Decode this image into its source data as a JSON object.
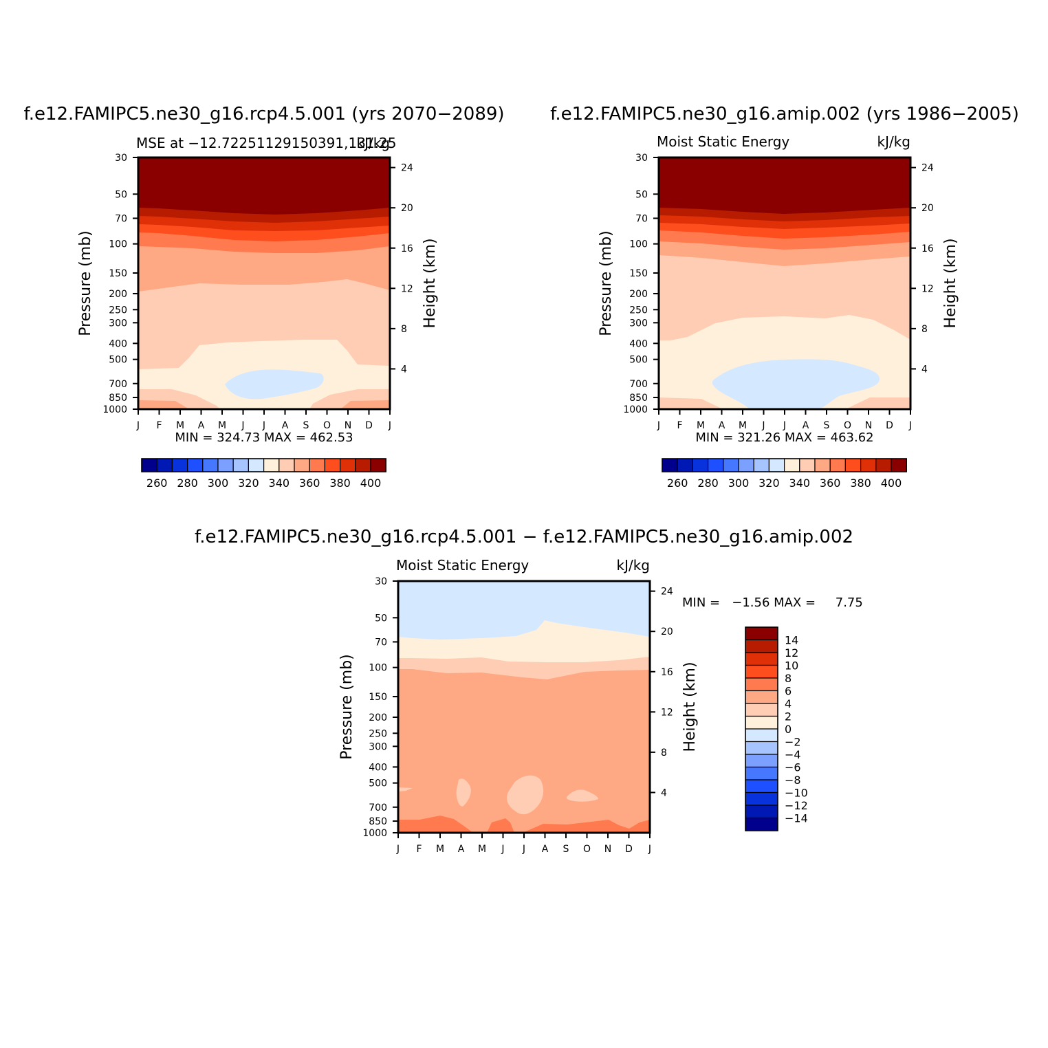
{
  "colors": {
    "abs_scale": [
      "#00008c",
      "#0018b4",
      "#0832dc",
      "#1e50ff",
      "#4678ff",
      "#7ca0ff",
      "#a6c4ff",
      "#d4e8ff",
      "#fff0dc",
      "#ffcdb4",
      "#ffa884",
      "#ff7a4e",
      "#ff4e1e",
      "#e03008",
      "#b81c00",
      "#8a0000"
    ],
    "diff_scale": [
      "#00008c",
      "#0018b4",
      "#0832dc",
      "#1e50ff",
      "#4678ff",
      "#7ca0ff",
      "#a6c4ff",
      "#d4e8ff",
      "#fff0dc",
      "#ffcdb4",
      "#ffa884",
      "#ff7a4e",
      "#ff4e1e",
      "#e03008",
      "#b81c00",
      "#8a0000"
    ]
  },
  "panels": [
    {
      "id": "rcp",
      "title": "f.e12.FAMIPC5.ne30_g16.rcp4.5.001 (yrs 2070−2089)",
      "left_string": "MSE at −12.72251129150391,131.25",
      "right_string": "kJ/kg",
      "y_label": "Pressure (mb)",
      "y2_label": "Height (km)",
      "stats": "MIN = 324.73 MAX = 462.53"
    },
    {
      "id": "amip",
      "title": "f.e12.FAMIPC5.ne30_g16.amip.002 (yrs 1986−2005)",
      "left_string": "Moist Static Energy",
      "right_string": "kJ/kg",
      "y_label": "Pressure (mb)",
      "y2_label": "Height (km)",
      "stats": "MIN = 321.26 MAX = 463.62"
    },
    {
      "id": "diff",
      "title": "f.e12.FAMIPC5.ne30_g16.rcp4.5.001 − f.e12.FAMIPC5.ne30_g16.amip.002",
      "left_string": "Moist Static Energy",
      "right_string": "kJ/kg",
      "y_label": "Pressure (mb)",
      "y2_label": "Height (km)",
      "stats": "MIN =   −1.56 MAX =     7.75"
    }
  ],
  "axes": {
    "months": [
      "J",
      "F",
      "M",
      "A",
      "M",
      "J",
      "J",
      "A",
      "S",
      "O",
      "N",
      "D",
      "J"
    ],
    "pressure_ticks": [
      "30",
      "50",
      "70",
      "100",
      "150",
      "200",
      "250",
      "300",
      "400",
      "500",
      "700",
      "850",
      "1000"
    ],
    "height_ticks": [
      "24",
      "20",
      "16",
      "12",
      "8",
      "4"
    ]
  },
  "colorbars": {
    "abs_labels": [
      "260",
      "280",
      "300",
      "320",
      "340",
      "360",
      "380",
      "400"
    ],
    "diff_labels": [
      "14",
      "12",
      "10",
      "8",
      "6",
      "4",
      "2",
      "0",
      "−2",
      "−4",
      "−6",
      "−8",
      "−10",
      "−12",
      "−14"
    ]
  },
  "chart_data": [
    {
      "type": "heatmap",
      "title": "f.e12.FAMIPC5.ne30_g16.rcp4.5.001 (yrs 2070−2089)",
      "subtitle": "MSE at −12.72251129150391,131.25",
      "units": "kJ/kg",
      "xlabel": "",
      "ylabel": "Pressure (mb)",
      "y2label": "Height (km)",
      "x_categories": [
        "J",
        "F",
        "M",
        "A",
        "M",
        "J",
        "J",
        "A",
        "S",
        "O",
        "N",
        "D",
        "J"
      ],
      "yscale": "log",
      "ylim": [
        1000,
        30
      ],
      "y2lim": [
        0,
        25
      ],
      "contour_levels": [
        250,
        260,
        270,
        280,
        290,
        300,
        310,
        320,
        330,
        340,
        350,
        360,
        370,
        380,
        390,
        400
      ],
      "min": 324.73,
      "max": 462.53
    },
    {
      "type": "heatmap",
      "title": "f.e12.FAMIPC5.ne30_g16.amip.002 (yrs 1986−2005)",
      "subtitle": "Moist Static Energy",
      "units": "kJ/kg",
      "xlabel": "",
      "ylabel": "Pressure (mb)",
      "y2label": "Height (km)",
      "x_categories": [
        "J",
        "F",
        "M",
        "A",
        "M",
        "J",
        "J",
        "A",
        "S",
        "O",
        "N",
        "D",
        "J"
      ],
      "yscale": "log",
      "ylim": [
        1000,
        30
      ],
      "y2lim": [
        0,
        25
      ],
      "contour_levels": [
        250,
        260,
        270,
        280,
        290,
        300,
        310,
        320,
        330,
        340,
        350,
        360,
        370,
        380,
        390,
        400
      ],
      "min": 321.26,
      "max": 463.62
    },
    {
      "type": "heatmap",
      "title": "f.e12.FAMIPC5.ne30_g16.rcp4.5.001 − f.e12.FAMIPC5.ne30_g16.amip.002",
      "subtitle": "Moist Static Energy",
      "units": "kJ/kg",
      "xlabel": "",
      "ylabel": "Pressure (mb)",
      "y2label": "Height (km)",
      "x_categories": [
        "J",
        "F",
        "M",
        "A",
        "M",
        "J",
        "J",
        "A",
        "S",
        "O",
        "N",
        "D",
        "J"
      ],
      "yscale": "log",
      "ylim": [
        1000,
        30
      ],
      "y2lim": [
        0,
        25
      ],
      "contour_levels": [
        -14,
        -12,
        -10,
        -8,
        -6,
        -4,
        -2,
        0,
        2,
        4,
        6,
        8,
        10,
        12,
        14
      ],
      "min": -1.56,
      "max": 7.75
    }
  ]
}
